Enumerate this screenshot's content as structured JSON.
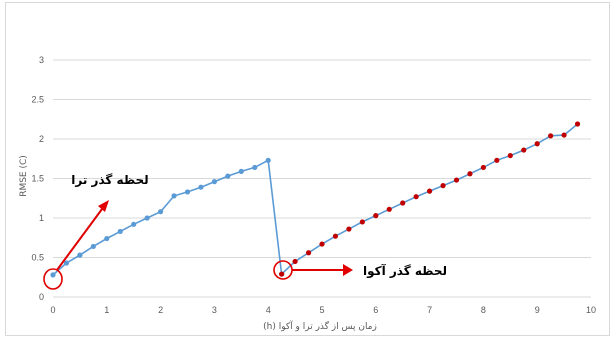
{
  "chart_data": {
    "type": "line",
    "xlabel": "زمان پس از گذر ترا و آکوا (h)",
    "ylabel": "RMSE (C)",
    "xlim": [
      0,
      10
    ],
    "ylim": [
      0,
      3
    ],
    "x_ticks": [
      "0",
      "1",
      "2",
      "3",
      "4",
      "5",
      "6",
      "7",
      "8",
      "9",
      "10"
    ],
    "y_ticks": [
      "0",
      "0.5",
      "1",
      "1.5",
      "2",
      "2.5",
      "3"
    ],
    "grid": "horizontal",
    "series": [
      {
        "color": "#5b9bd5",
        "marker_color": "#5b9bd5",
        "points": [
          [
            0.0,
            0.28
          ],
          [
            0.25,
            0.43
          ],
          [
            0.5,
            0.53
          ],
          [
            0.75,
            0.64
          ],
          [
            1.0,
            0.74
          ],
          [
            1.25,
            0.83
          ],
          [
            1.5,
            0.92
          ],
          [
            1.75,
            1.0
          ],
          [
            2.0,
            1.08
          ],
          [
            2.25,
            1.28
          ],
          [
            2.5,
            1.33
          ],
          [
            2.75,
            1.39
          ],
          [
            3.0,
            1.46
          ],
          [
            3.25,
            1.53
          ],
          [
            3.5,
            1.59
          ],
          [
            3.75,
            1.64
          ],
          [
            4.0,
            1.73
          ],
          [
            4.25,
            0.29
          ]
        ]
      },
      {
        "color": "#5b9bd5",
        "marker_color": "#c00000",
        "points": [
          [
            4.25,
            0.29
          ],
          [
            4.5,
            0.45
          ],
          [
            4.75,
            0.56
          ],
          [
            5.0,
            0.67
          ],
          [
            5.25,
            0.77
          ],
          [
            5.5,
            0.86
          ],
          [
            5.75,
            0.95
          ],
          [
            6.0,
            1.03
          ],
          [
            6.25,
            1.11
          ],
          [
            6.5,
            1.19
          ],
          [
            6.75,
            1.27
          ],
          [
            7.0,
            1.34
          ],
          [
            7.25,
            1.41
          ],
          [
            7.5,
            1.48
          ],
          [
            7.75,
            1.56
          ],
          [
            8.0,
            1.64
          ],
          [
            8.25,
            1.73
          ],
          [
            8.5,
            1.79
          ],
          [
            8.75,
            1.86
          ],
          [
            9.0,
            1.94
          ],
          [
            9.25,
            2.04
          ],
          [
            9.5,
            2.05
          ],
          [
            9.75,
            2.19
          ]
        ]
      }
    ],
    "annotations": [
      {
        "text": "لحظه گذر ترا",
        "target": [
          0.0,
          0.28
        ]
      },
      {
        "text": "لحظه گذر آکوا",
        "target": [
          4.25,
          0.29
        ]
      }
    ],
    "annotation_color": "#e00000"
  }
}
